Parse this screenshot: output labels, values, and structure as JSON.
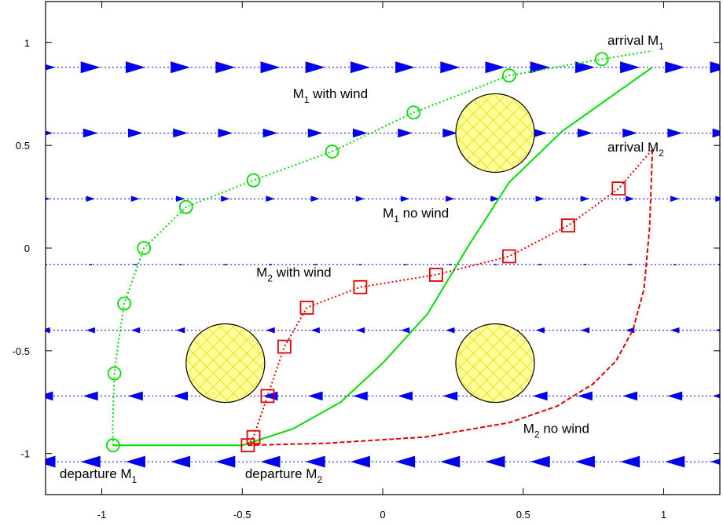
{
  "chart_data": {
    "type": "line",
    "title": "",
    "xlabel": "",
    "ylabel": "",
    "xlim": [
      -1.2,
      1.2
    ],
    "ylim": [
      -1.2,
      1.2
    ],
    "x_ticks": [
      -1,
      -0.5,
      0,
      0.5,
      1
    ],
    "x_tick_labels": [
      "-1",
      "-0.5",
      "0",
      "0.5",
      "1"
    ],
    "y_ticks": [
      -1,
      -0.5,
      0,
      0.5,
      1
    ],
    "y_tick_labels": [
      "-1",
      "-0.5",
      "0",
      "0.5",
      "1"
    ],
    "grid": false,
    "legend": "none",
    "series": [
      {
        "style": "dotted",
        "color": "#00dd00",
        "marker": "circle",
        "x": [
          -0.96,
          -0.961,
          -0.955,
          -0.94,
          -0.92,
          -0.85,
          -0.7,
          -0.46,
          -0.18,
          0.11,
          0.45,
          0.78,
          0.96
        ],
        "y": [
          -0.96,
          -0.85,
          -0.61,
          -0.45,
          -0.27,
          0.0,
          0.2,
          0.33,
          0.47,
          0.66,
          0.84,
          0.92,
          0.96
        ],
        "marker_indices": [
          0,
          2,
          4,
          5,
          6,
          7,
          8,
          9,
          10,
          11
        ]
      },
      {
        "style": "solid",
        "color": "#00dd00",
        "marker": "none",
        "x": [
          -0.96,
          -0.5,
          -0.32,
          -0.15,
          0.0,
          0.16,
          0.3,
          0.45,
          0.64,
          0.96
        ],
        "y": [
          -0.96,
          -0.96,
          -0.88,
          -0.75,
          -0.56,
          -0.32,
          0.0,
          0.32,
          0.57,
          0.88
        ],
        "marker_indices": []
      },
      {
        "style": "dotted",
        "color": "#dd0000",
        "marker": "square",
        "x": [
          -0.48,
          -0.46,
          -0.41,
          -0.35,
          -0.27,
          -0.08,
          0.19,
          0.45,
          0.66,
          0.84,
          0.96
        ],
        "y": [
          -0.96,
          -0.92,
          -0.72,
          -0.48,
          -0.29,
          -0.19,
          -0.13,
          -0.04,
          0.11,
          0.29,
          0.48
        ],
        "marker_indices": [
          0,
          1,
          2,
          3,
          4,
          5,
          6,
          7,
          8,
          9
        ]
      },
      {
        "style": "dashed",
        "color": "#dd0000",
        "marker": "none",
        "x": [
          -0.48,
          -0.2,
          0.15,
          0.45,
          0.62,
          0.75,
          0.83,
          0.89,
          0.93,
          0.95,
          0.96
        ],
        "y": [
          -0.96,
          -0.95,
          -0.92,
          -0.85,
          -0.77,
          -0.66,
          -0.55,
          -0.4,
          -0.2,
          0.1,
          0.48
        ],
        "marker_indices": []
      }
    ],
    "obstacles": [
      {
        "x": 0.4,
        "y": 0.56,
        "r": 0.14
      },
      {
        "x": -0.56,
        "y": -0.56,
        "r": 0.14
      },
      {
        "x": 0.4,
        "y": -0.56,
        "r": 0.14
      }
    ],
    "wind_field": {
      "color": "#0000ee",
      "rows": [
        {
          "y": 0.88,
          "direction": 1,
          "size": 1.0
        },
        {
          "y": 0.56,
          "direction": 1,
          "size": 0.72
        },
        {
          "y": 0.24,
          "direction": 1,
          "size": 0.38
        },
        {
          "y": -0.08,
          "direction": 0,
          "size": 0.15
        },
        {
          "y": -0.4,
          "direction": -1,
          "size": 0.38
        },
        {
          "y": -0.72,
          "direction": -1,
          "size": 0.72
        },
        {
          "y": -1.04,
          "direction": -1,
          "size": 1.0
        }
      ],
      "x_positions": [
        -1.2,
        -1.04,
        -0.88,
        -0.72,
        -0.56,
        -0.4,
        -0.24,
        -0.08,
        0.08,
        0.24,
        0.4,
        0.56,
        0.72,
        0.88,
        1.04,
        1.2
      ]
    },
    "annotations": [
      {
        "main": "arrival M",
        "sub": "1",
        "suffix": "",
        "x": 0.8,
        "y": 0.99
      },
      {
        "main": "M",
        "sub": "1",
        "suffix": " with wind",
        "x": -0.32,
        "y": 0.73
      },
      {
        "main": "arrival M",
        "sub": "2",
        "suffix": "",
        "x": 0.8,
        "y": 0.47
      },
      {
        "main": "M",
        "sub": "1",
        "suffix": " no wind",
        "x": 0.0,
        "y": 0.15
      },
      {
        "main": "M",
        "sub": "2",
        "suffix": " with wind",
        "x": -0.45,
        "y": -0.14
      },
      {
        "main": "M",
        "sub": "2",
        "suffix": " no wind",
        "x": 0.5,
        "y": -0.9
      },
      {
        "main": "departure M",
        "sub": "1",
        "suffix": "",
        "x": -1.15,
        "y": -1.12
      },
      {
        "main": "departure M",
        "sub": "2",
        "suffix": "",
        "x": -0.49,
        "y": -1.12
      }
    ]
  }
}
